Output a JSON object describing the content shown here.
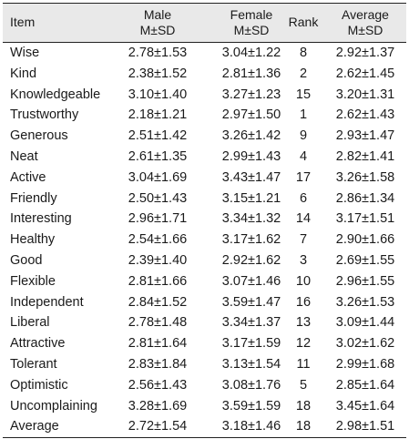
{
  "header": {
    "item": "Item",
    "male": "Male",
    "male_sub": "M±SD",
    "female": "Female",
    "female_sub": "M±SD",
    "rank": "Rank",
    "average": "Average",
    "average_sub": "M±SD"
  },
  "rows": [
    {
      "item": "Wise",
      "male": "2.78±1.53",
      "female": "3.04±1.22",
      "rank": "8",
      "average": "2.92±1.37"
    },
    {
      "item": "Kind",
      "male": "2.38±1.52",
      "female": "2.81±1.36",
      "rank": "2",
      "average": "2.62±1.45"
    },
    {
      "item": "Knowledgeable",
      "male": "3.10±1.40",
      "female": "3.27±1.23",
      "rank": "15",
      "average": "3.20±1.31"
    },
    {
      "item": "Trustworthy",
      "male": "2.18±1.21",
      "female": "2.97±1.50",
      "rank": "1",
      "average": "2.62±1.43"
    },
    {
      "item": "Generous",
      "male": "2.51±1.42",
      "female": "3.26±1.42",
      "rank": "9",
      "average": "2.93±1.47"
    },
    {
      "item": "Neat",
      "male": "2.61±1.35",
      "female": "2.99±1.43",
      "rank": "4",
      "average": "2.82±1.41"
    },
    {
      "item": "Active",
      "male": "3.04±1.69",
      "female": "3.43±1.47",
      "rank": "17",
      "average": "3.26±1.58"
    },
    {
      "item": "Friendly",
      "male": "2.50±1.43",
      "female": "3.15±1.21",
      "rank": "6",
      "average": "2.86±1.34"
    },
    {
      "item": "Interesting",
      "male": "2.96±1.71",
      "female": "3.34±1.32",
      "rank": "14",
      "average": "3.17±1.51"
    },
    {
      "item": "Healthy",
      "male": "2.54±1.66",
      "female": "3.17±1.62",
      "rank": "7",
      "average": "2.90±1.66"
    },
    {
      "item": "Good",
      "male": "2.39±1.40",
      "female": "2.92±1.62",
      "rank": "3",
      "average": "2.69±1.55"
    },
    {
      "item": "Flexible",
      "male": "2.81±1.66",
      "female": "3.07±1.46",
      "rank": "10",
      "average": "2.96±1.55"
    },
    {
      "item": "Independent",
      "male": "2.84±1.52",
      "female": "3.59±1.47",
      "rank": "16",
      "average": "3.26±1.53"
    },
    {
      "item": "Liberal",
      "male": "2.78±1.48",
      "female": "3.34±1.37",
      "rank": "13",
      "average": "3.09±1.44"
    },
    {
      "item": "Attractive",
      "male": "2.81±1.64",
      "female": "3.17±1.59",
      "rank": "12",
      "average": "3.02±1.62"
    },
    {
      "item": "Tolerant",
      "male": "2.83±1.84",
      "female": "3.13±1.54",
      "rank": "11",
      "average": "2.99±1.68"
    },
    {
      "item": "Optimistic",
      "male": "2.56±1.43",
      "female": "3.08±1.76",
      "rank": "5",
      "average": "2.85±1.64"
    },
    {
      "item": "Uncomplaining",
      "male": "3.28±1.69",
      "female": "3.59±1.59",
      "rank": "18",
      "average": "3.45±1.64"
    },
    {
      "item": "Average",
      "male": "2.72±1.54",
      "female": "3.18±1.46",
      "rank": "18",
      "average": "2.98±1.51"
    }
  ]
}
